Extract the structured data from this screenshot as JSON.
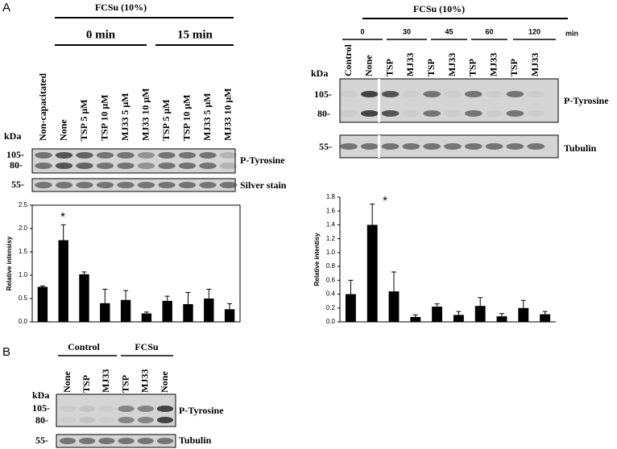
{
  "panel_labels": [
    "A",
    "B"
  ],
  "panel_a_left": {
    "header": "FCSu (10%)",
    "groups": [
      "0 min",
      "15 min"
    ],
    "lanes": [
      "Non-capacitated",
      "None",
      "TSP 5 μM",
      "TSP 10 μM",
      "MJ33 5 μM",
      "MJ33 10 μM",
      "TSP 5 μM",
      "TSP 10 μM",
      "MJ33 5 μM",
      "MJ33 10 μM"
    ],
    "kda": "kDa",
    "markers": [
      "105-",
      "80-"
    ],
    "loading_marker": "55-",
    "blot_label": "P-Tyrosine",
    "loading_label": "Silver stain",
    "annotation": "*"
  },
  "panel_a_right": {
    "header": "FCSu (10%)",
    "groups": [
      "0",
      "30",
      "45",
      "60",
      "120"
    ],
    "unit": "min",
    "lanes": [
      "Control",
      "None",
      "TSP",
      "MJ33",
      "TSP",
      "MJ33",
      "TSP",
      "MJ33",
      "TSP",
      "MJ33"
    ],
    "kda": "kDa",
    "markers": [
      "105-",
      "80-"
    ],
    "loading_marker": "55-",
    "blot_label": "P-Tyrosine",
    "loading_label": "Tubulin",
    "annotation": "*"
  },
  "panel_b": {
    "groups": [
      "Control",
      "FCSu"
    ],
    "lanes": [
      "None",
      "TSP",
      "MJ33",
      "TSP",
      "MJ33",
      "None"
    ],
    "kda": "kDa",
    "markers": [
      "105-",
      "80-"
    ],
    "loading_marker": "55-",
    "blot_label": "P-Tyrosine",
    "loading_label": "Tubulin"
  },
  "chart_data": [
    {
      "type": "bar",
      "ylabel": "Relative intensisy",
      "color": "#000000",
      "categories": [
        null,
        null,
        null,
        null,
        null,
        null,
        null,
        null,
        null,
        null
      ],
      "values": [
        0.75,
        1.75,
        1.02,
        0.4,
        0.47,
        0.18,
        0.45,
        0.38,
        0.5,
        0.27
      ],
      "errors": [
        0.02,
        0.33,
        0.05,
        0.3,
        0.2,
        0.03,
        0.1,
        0.25,
        0.2,
        0.12
      ],
      "ylim": [
        0,
        2.5
      ],
      "yticks": [
        {
          "value": 0,
          "label": "0.0"
        },
        0.5,
        {
          "value": 1,
          "label": "1.0"
        },
        1.5,
        {
          "value": 2,
          "label": "2.0"
        },
        2.5
      ]
    },
    {
      "type": "bar",
      "ylabel": "Relative intentisy",
      "color": "#000000",
      "categories": [
        null,
        null,
        null,
        null,
        null,
        null,
        null,
        null,
        null,
        null
      ],
      "values": [
        0.4,
        1.4,
        0.44,
        0.07,
        0.22,
        0.1,
        0.23,
        0.08,
        0.2,
        0.11
      ],
      "errors": [
        0.2,
        0.3,
        0.28,
        0.03,
        0.04,
        0.05,
        0.12,
        0.04,
        0.11,
        0.04
      ],
      "ylim": [
        0,
        1.8
      ],
      "yticks": [
        {
          "value": 0,
          "label": "0.0"
        },
        0.2,
        0.4,
        0.6,
        0.8,
        {
          "value": 1,
          "label": "1.0"
        },
        1.2,
        1.4,
        1.6,
        1.8
      ]
    }
  ]
}
